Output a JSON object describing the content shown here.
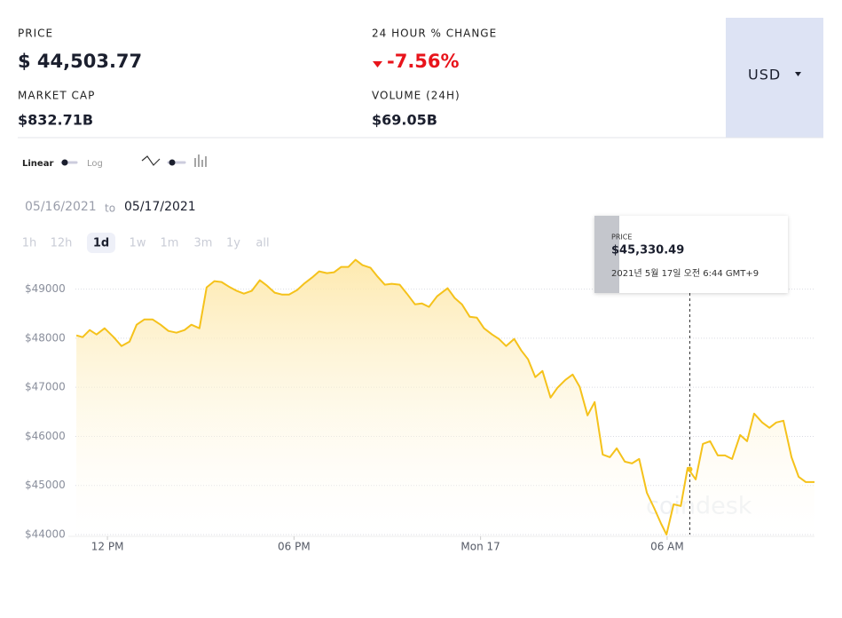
{
  "header": {
    "price_label": "PRICE",
    "price": "$ 44,503.77",
    "change_label": "24 HOUR % CHANGE",
    "change": "-7.56%",
    "market_cap_label": "MARKET CAP",
    "market_cap": "$832.71B",
    "volume_label": "VOLUME (24H)",
    "volume": "$69.05B",
    "currency": "USD"
  },
  "controls": {
    "scale_linear": "Linear",
    "scale_log": "Log",
    "date_from": "05/16/2021",
    "date_to_word": "to",
    "date_to": "05/17/2021",
    "ranges": [
      "1h",
      "12h",
      "1d",
      "1w",
      "1m",
      "3m",
      "1y",
      "all"
    ],
    "active_range": "1d",
    "watermark": "coindesk"
  },
  "chart_data": {
    "type": "line",
    "color": "#f5c21b",
    "grid": true,
    "x": [
      11.0,
      11.2,
      11.43,
      11.65,
      11.91,
      12.2,
      12.45,
      12.71,
      12.94,
      13.19,
      13.45,
      13.71,
      13.96,
      14.22,
      14.48,
      14.7,
      14.96,
      15.19,
      15.44,
      15.67,
      15.9,
      16.16,
      16.39,
      16.64,
      16.9,
      17.13,
      17.38,
      17.61,
      17.84,
      18.1,
      18.32,
      18.58,
      18.81,
      19.06,
      19.29,
      19.52,
      19.75,
      19.98,
      20.2,
      20.46,
      20.69,
      20.92,
      21.14,
      21.4,
      21.63,
      21.89,
      22.11,
      22.34,
      22.6,
      22.94,
      23.17,
      23.4,
      23.65,
      23.88,
      24.11,
      24.37,
      24.59,
      24.82,
      25.08,
      25.31,
      25.53,
      25.76,
      25.99,
      26.25,
      26.47,
      26.73,
      26.96,
      27.19,
      27.44,
      27.67,
      27.93,
      28.16,
      28.38,
      28.64,
      28.87,
      29.1,
      29.35,
      29.58,
      29.81,
      29.98,
      30.21,
      30.44,
      30.66,
      30.92,
      31.15,
      31.38,
      31.63,
      31.86,
      32.09,
      32.35,
      32.57,
      32.8,
      33.06,
      33.29,
      33.51,
      33.74,
      34.0,
      34.23,
      34.46,
      34.74
    ],
    "values": [
      48058,
      48022,
      48167,
      48076,
      48203,
      48022,
      47841,
      47931,
      48275,
      48384,
      48384,
      48275,
      48149,
      48112,
      48167,
      48275,
      48203,
      49036,
      49163,
      49145,
      49054,
      48964,
      48909,
      48964,
      49181,
      49072,
      48928,
      48891,
      48891,
      48982,
      49109,
      49236,
      49362,
      49326,
      49344,
      49453,
      49453,
      49598,
      49489,
      49435,
      49254,
      49091,
      49109,
      49091,
      48909,
      48692,
      48710,
      48638,
      48855,
      49018,
      48819,
      48692,
      48438,
      48420,
      48203,
      48076,
      47986,
      47841,
      47986,
      47750,
      47569,
      47207,
      47333,
      46790,
      46989,
      47152,
      47261,
      47007,
      46428,
      46699,
      45630,
      45576,
      45757,
      45486,
      45449,
      45540,
      44851,
      44543,
      44217,
      44000,
      44616,
      44580,
      45359,
      45123,
      45848,
      45902,
      45612,
      45612,
      45540,
      46029,
      45902,
      46464,
      46283,
      46174,
      46283,
      46319,
      45576,
      45178,
      45069,
      45069
    ],
    "xlim": [
      10.97,
      34.74
    ],
    "ylim": [
      44000,
      49500
    ],
    "xticks": [
      {
        "value": 12,
        "label": "12 PM"
      },
      {
        "value": 18,
        "label": "06 PM"
      },
      {
        "value": 24,
        "label": "Mon 17"
      },
      {
        "value": 30,
        "label": "06 AM"
      }
    ],
    "yticks": [
      {
        "value": 44000,
        "label": "$44000"
      },
      {
        "value": 45000,
        "label": "$45000"
      },
      {
        "value": 46000,
        "label": "$46000"
      },
      {
        "value": 47000,
        "label": "$47000"
      },
      {
        "value": 48000,
        "label": "$48000"
      },
      {
        "value": 49000,
        "label": "$49000"
      }
    ],
    "tooltip": {
      "label": "PRICE",
      "x": 30.73,
      "value": 45330.49,
      "value_label": "$45,330.49",
      "time": "2021년 5월 17일 오전 6:44 GMT+9"
    }
  }
}
